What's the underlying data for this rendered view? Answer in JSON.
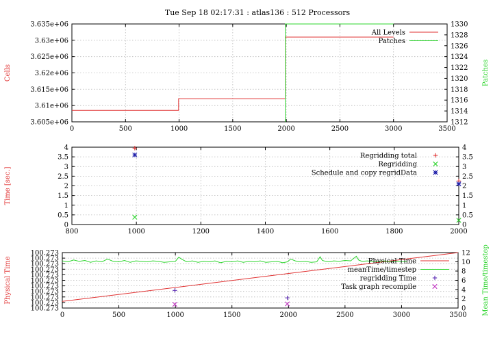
{
  "figure": {
    "title": "Tue Sep 18 02:17:31 : atlas136 : 512 Processors",
    "colors": {
      "red": "#e03030",
      "green": "#2bd42b",
      "blue": "#1a1aa8",
      "purple": "#5b2bb3",
      "magenta": "#c030c0",
      "grid": "#b8b8b8",
      "axis": "#000000",
      "background": "#ffffff"
    }
  },
  "chart_data": [
    {
      "type": "line",
      "id": "cells-patches",
      "ylabel": "Cells",
      "y2label": "Patches",
      "xlim": [
        0,
        3500
      ],
      "ylim": [
        3605000,
        3635000
      ],
      "y2lim": [
        1312,
        1330
      ],
      "xticks": [
        "0",
        "500",
        "1000",
        "1500",
        "2000",
        "2500",
        "3000",
        "3500"
      ],
      "xtick_values": [
        0,
        500,
        1000,
        1500,
        2000,
        2500,
        3000,
        3500
      ],
      "yticks": [
        "3.605e+06",
        "3.61e+06",
        "3.615e+06",
        "3.62e+06",
        "3.625e+06",
        "3.63e+06",
        "3.635e+06"
      ],
      "ytick_values": [
        3605000,
        3610000,
        3615000,
        3620000,
        3625000,
        3630000,
        3635000
      ],
      "y2ticks": [
        "1312",
        "1314",
        "1316",
        "1318",
        "1320",
        "1322",
        "1324",
        "1326",
        "1328",
        "1330"
      ],
      "y2tick_values": [
        1312,
        1314,
        1316,
        1318,
        1320,
        1322,
        1324,
        1326,
        1328,
        1330
      ],
      "grid": true,
      "legend": "top-right",
      "series": [
        {
          "name": "All Levels",
          "axis": "y",
          "style": "step",
          "color": "#e03030",
          "x": [
            0,
            995,
            995,
            1990,
            1990,
            3000
          ],
          "y": [
            3608500,
            3608500,
            3612100,
            3612100,
            3631000,
            3631000
          ]
        },
        {
          "name": "Patches",
          "axis": "y2",
          "style": "step",
          "color": "#2bd42b",
          "x": [
            1990,
            1990,
            3000
          ],
          "y": [
            1312,
            1330,
            1330
          ]
        }
      ]
    },
    {
      "type": "scatter",
      "id": "regrid-time",
      "ylabel": "Time [sec.]",
      "xlim": [
        800,
        2000
      ],
      "ylim": [
        0,
        4
      ],
      "y2lim": [
        0,
        4
      ],
      "xticks": [
        "800",
        "1000",
        "1200",
        "1400",
        "1600",
        "1800",
        "2000"
      ],
      "xtick_values": [
        800,
        1000,
        1200,
        1400,
        1600,
        1800,
        2000
      ],
      "yticks": [
        "0",
        "0.5",
        "1",
        "1.5",
        "2",
        "2.5",
        "3",
        "3.5",
        "4"
      ],
      "ytick_values": [
        0,
        0.5,
        1,
        1.5,
        2,
        2.5,
        3,
        3.5,
        4
      ],
      "y2ticks": [
        "0",
        "0.5",
        "1",
        "1.5",
        "2",
        "2.5",
        "3",
        "3.5",
        "4"
      ],
      "y2tick_values": [
        0,
        0.5,
        1,
        1.5,
        2,
        2.5,
        3,
        3.5,
        4
      ],
      "grid": true,
      "legend": "top-right",
      "series": [
        {
          "name": "Regridding total",
          "marker": "plus",
          "color": "#e03030",
          "x": [
            995,
            2000
          ],
          "y": [
            3.95,
            2.25
          ]
        },
        {
          "name": "Regridding",
          "marker": "cross",
          "color": "#2bd42b",
          "x": [
            995,
            2000
          ],
          "y": [
            0.38,
            0.22
          ]
        },
        {
          "name": "Schedule and copy regridData",
          "marker": "star",
          "color": "#1a1aa8",
          "x": [
            995,
            2000
          ],
          "y": [
            3.6,
            2.1
          ]
        }
      ]
    },
    {
      "type": "line",
      "id": "physical-time",
      "ylabel": "Physical Time",
      "y2label": "Mean Time/timestep",
      "xlim": [
        0,
        3500
      ],
      "ylim": [
        0,
        10
      ],
      "y2lim": [
        0,
        12
      ],
      "xticks": [
        "0",
        "500",
        "1000",
        "1500",
        "2000",
        "2500",
        "3000",
        "3500"
      ],
      "xtick_values": [
        0,
        500,
        1000,
        1500,
        2000,
        2500,
        3000,
        3500
      ],
      "yticks": [
        "100.273",
        "100.273",
        "100.273",
        "100.273",
        "100.273",
        "100.273",
        "100.273",
        "100.273",
        "100.273",
        "100.273",
        "100.273"
      ],
      "ytick_values": [
        0,
        1,
        2,
        3,
        4,
        5,
        6,
        7,
        8,
        9,
        10
      ],
      "y2ticks": [
        "0",
        "2",
        "4",
        "6",
        "8",
        "10",
        "12"
      ],
      "y2tick_values": [
        0,
        2,
        4,
        6,
        8,
        10,
        12
      ],
      "grid": true,
      "legend": "top-right",
      "series": [
        {
          "name": "Physical Time",
          "axis": "y",
          "style": "line",
          "color": "#e03030",
          "x": [
            0,
            3500
          ],
          "y": [
            1.2,
            11.6
          ]
        },
        {
          "name": "meanTime/timestep",
          "axis": "y2",
          "style": "line",
          "color": "#2bd42b",
          "x": [
            0,
            50,
            100,
            150,
            200,
            250,
            300,
            350,
            400,
            450,
            500,
            550,
            600,
            650,
            700,
            750,
            800,
            850,
            900,
            950,
            1000,
            1030,
            1060,
            1100,
            1150,
            1200,
            1250,
            1300,
            1350,
            1400,
            1450,
            1500,
            1550,
            1600,
            1650,
            1700,
            1750,
            1800,
            1850,
            1900,
            1950,
            1990,
            2020,
            2060,
            2100,
            2150,
            2200,
            2250,
            2280,
            2300,
            2330,
            2360,
            2400,
            2450,
            2500,
            2550,
            2600,
            2620,
            2650,
            2700,
            2750,
            2800,
            2850,
            2900,
            2950,
            3000,
            3050
          ],
          "y": [
            10.2,
            10.0,
            10.4,
            10.1,
            10.3,
            9.9,
            10.2,
            10.0,
            10.6,
            10.1,
            10.0,
            10.3,
            9.9,
            10.2,
            10.1,
            10.0,
            10.2,
            10.1,
            9.9,
            10.0,
            10.1,
            11.0,
            10.5,
            10.0,
            10.2,
            9.9,
            10.1,
            10.0,
            10.2,
            9.8,
            10.1,
            10.0,
            10.2,
            9.9,
            10.1,
            10.0,
            10.2,
            9.9,
            10.0,
            10.1,
            9.8,
            10.0,
            10.6,
            10.2,
            10.0,
            10.1,
            9.9,
            10.0,
            11.1,
            10.3,
            10.1,
            10.0,
            10.2,
            10.1,
            10.3,
            10.2,
            11.2,
            10.4,
            10.1,
            10.2,
            10.0,
            10.1,
            10.2,
            10.0,
            10.1,
            10.0,
            10.1
          ]
        },
        {
          "name": "regridding Time",
          "marker": "plus",
          "axis": "y2",
          "color": "#5b2bb3",
          "x": [
            995,
            1990
          ],
          "y": [
            3.8,
            2.2
          ]
        },
        {
          "name": "Task graph recompile",
          "marker": "cross",
          "axis": "y2",
          "color": "#c030c0",
          "x": [
            995,
            1990
          ],
          "y": [
            0.8,
            0.9
          ]
        }
      ]
    }
  ]
}
